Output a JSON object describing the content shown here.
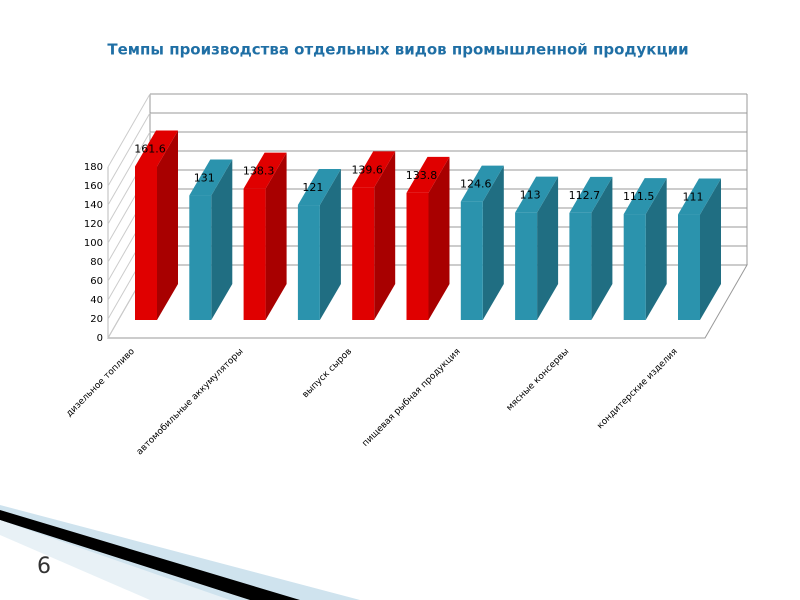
{
  "chart_data": {
    "type": "bar3d",
    "title": "Темпы производства отдельных видов промышленной продукции",
    "categories": [
      "дизельное топливо",
      null,
      "автомобильные аккумуляторы",
      null,
      "выпуск сыров",
      null,
      "пищевая рыбная продукция",
      null,
      "мясные консервы",
      null,
      "кондитерские изделия"
    ],
    "values": [
      161.6,
      131,
      138.3,
      121,
      139.6,
      133.8,
      124.6,
      113,
      112.7,
      111.5,
      111
    ],
    "colors": [
      "#e00000",
      "#2b93ad",
      "#e00000",
      "#2b93ad",
      "#e00000",
      "#e00000",
      "#2b93ad",
      "#2b93ad",
      "#2b93ad",
      "#2b93ad",
      "#2b93ad"
    ],
    "ylim": [
      0,
      180
    ],
    "yticks": [
      0,
      20,
      40,
      60,
      80,
      100,
      120,
      140,
      160,
      180
    ],
    "grid": true
  },
  "slide_number": "6"
}
